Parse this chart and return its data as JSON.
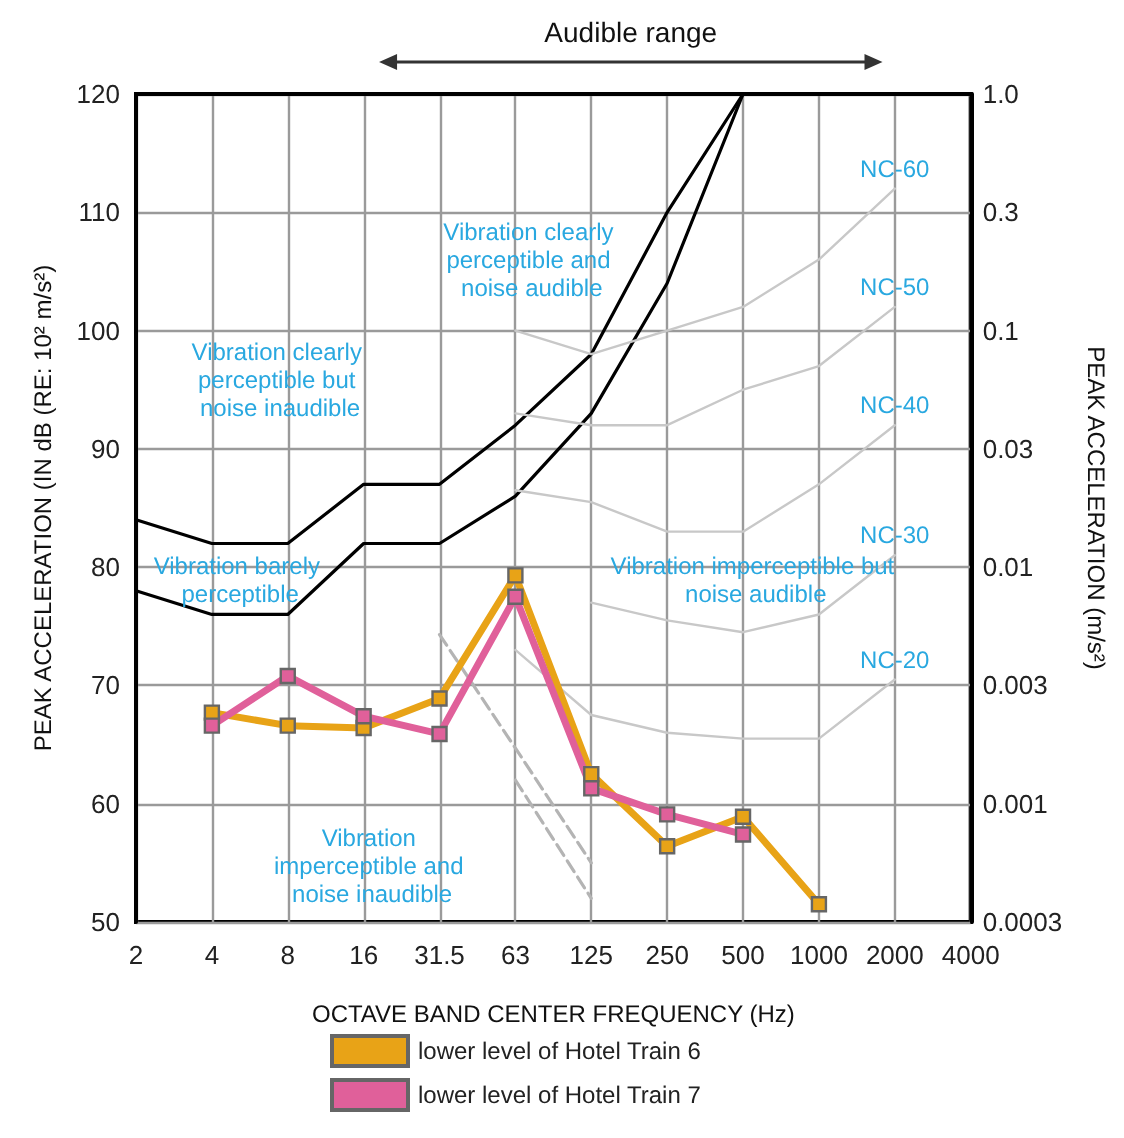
{
  "chart_data": {
    "type": "line",
    "xlabel": "OCTAVE BAND CENTER FREQUENCY (Hz)",
    "ylabel": "PEAK ACCELERATION (IN dB (RE: 10² m/s²)",
    "y2label": "PEAK ACCELERATION (m/s²)",
    "log": "y2",
    "grid": true,
    "legend": "bottom",
    "categories": [
      "2",
      "4",
      "8",
      "16",
      "31.5",
      "63",
      "125",
      "250",
      "500",
      "1000",
      "2000",
      "4000"
    ],
    "ylim": [
      50,
      120
    ],
    "yticks": [
      50,
      60,
      70,
      80,
      90,
      100,
      110,
      120
    ],
    "y2lim": [
      0.000316,
      1.0
    ],
    "y2ticks": [
      {
        "value": 1.0,
        "label": "1.0"
      },
      {
        "value": 0.316,
        "label": "0.3"
      },
      0.1,
      {
        "value": 0.0316,
        "label": "0.03"
      },
      0.01,
      {
        "value": 0.00316,
        "label": "0.003"
      },
      0.001,
      {
        "value": 0.000316,
        "label": "0.0003"
      }
    ],
    "series": [
      {
        "color": "#000000",
        "marker": "none",
        "line_style": "solid",
        "values": [
          84,
          82,
          82,
          87,
          87,
          92,
          98,
          110,
          120,
          null,
          null,
          null
        ]
      },
      {
        "color": "#000000",
        "marker": "none",
        "line_style": "solid",
        "values": [
          78,
          76,
          76,
          82,
          82,
          86,
          93,
          104,
          120,
          null,
          null,
          null
        ]
      },
      {
        "name": "NC-60",
        "color": "#c8c8c8",
        "marker": "none",
        "line_style": "solid",
        "values": [
          null,
          null,
          null,
          null,
          null,
          100,
          98,
          100,
          102,
          106,
          112,
          null
        ]
      },
      {
        "name": "NC-50",
        "color": "#c8c8c8",
        "marker": "none",
        "line_style": "solid",
        "values": [
          null,
          null,
          null,
          null,
          null,
          93,
          92,
          92,
          95,
          97,
          102,
          null
        ]
      },
      {
        "name": "NC-40",
        "color": "#c8c8c8",
        "marker": "none",
        "line_style": "solid",
        "values": [
          null,
          null,
          null,
          null,
          null,
          86.5,
          85.5,
          83,
          83,
          87,
          92,
          null
        ]
      },
      {
        "name": "NC-30",
        "color": "#c8c8c8",
        "marker": "none",
        "line_style": "solid",
        "values": [
          null,
          null,
          null,
          null,
          null,
          null,
          77,
          75.5,
          74.5,
          76,
          81,
          null
        ]
      },
      {
        "name": "NC-20",
        "color": "#c8c8c8",
        "marker": "none",
        "line_style": "solid",
        "values": [
          null,
          null,
          null,
          null,
          null,
          73,
          67.5,
          66,
          65.5,
          65.5,
          70.5,
          null
        ]
      },
      {
        "color": "#b4b4b4",
        "marker": "none",
        "line_style": "dashed",
        "values": [
          null,
          null,
          null,
          null,
          74.3,
          64.7,
          55,
          null,
          null,
          null,
          null,
          null
        ]
      },
      {
        "color": "#b4b4b4",
        "marker": "none",
        "line_style": "dashed",
        "values": [
          null,
          null,
          null,
          null,
          null,
          62,
          52,
          null,
          null,
          null,
          null,
          null
        ]
      },
      {
        "name": "lower level of Hotel Train 6",
        "color": "#e8a317",
        "marker": "square",
        "line_style": "solid",
        "values": [
          null,
          67.7,
          66.6,
          66.4,
          68.9,
          79.3,
          62.5,
          56.4,
          58.9,
          51.5,
          null,
          null
        ]
      },
      {
        "name": "lower level of Hotel Train 7",
        "color": "#e0609a",
        "marker": "square",
        "line_style": "solid",
        "values": [
          null,
          66.6,
          70.8,
          67.4,
          65.9,
          77.5,
          61.3,
          59.1,
          57.4,
          null,
          null,
          null
        ]
      }
    ],
    "annotations": [
      "Audible range",
      "Vibration clearly perceptible but noise inaudible",
      "Vibration clearly perceptible and noise audible",
      "Vibration barely perceptible",
      "Vibration imperceptible but noise audible",
      "Vibration imperceptible and noise inaudible"
    ]
  }
}
